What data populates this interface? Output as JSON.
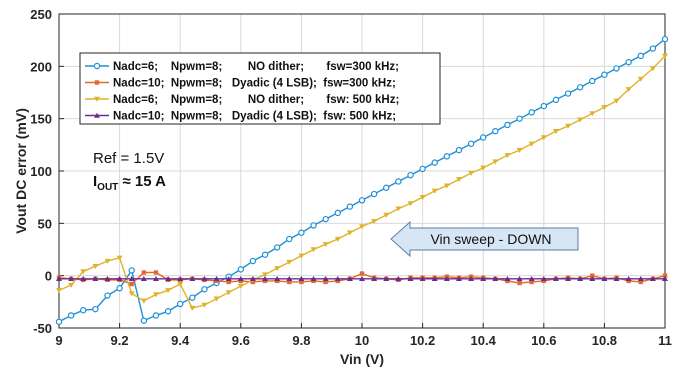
{
  "chart_data": {
    "type": "line",
    "title": "",
    "xlabel": "Vin (V)",
    "ylabel": "Vout DC error (mV)",
    "xlim": [
      9,
      11
    ],
    "ylim": [
      -50,
      250
    ],
    "xticks": [
      "9",
      "9.2",
      "9.4",
      "9.6",
      "9.8",
      "10",
      "10.2",
      "10.4",
      "10.6",
      "10.8",
      "11"
    ],
    "yticks": [
      "-50",
      "0",
      "50",
      "100",
      "150",
      "200",
      "250"
    ],
    "grid": true,
    "legend_position": "top-left",
    "series": [
      {
        "name": "Nadc=6;    Npwm=8;        NO dither;       fsw=300 kHz;",
        "color": "#1f8fd6",
        "marker": "circle",
        "points": [
          [
            9.0,
            -44
          ],
          [
            9.04,
            -38
          ],
          [
            9.08,
            -33
          ],
          [
            9.12,
            -32
          ],
          [
            9.16,
            -19
          ],
          [
            9.2,
            -12
          ],
          [
            9.24,
            5
          ],
          [
            9.28,
            -43
          ],
          [
            9.32,
            -38
          ],
          [
            9.36,
            -34
          ],
          [
            9.4,
            -27
          ],
          [
            9.44,
            -21
          ],
          [
            9.48,
            -13
          ],
          [
            9.52,
            -7
          ],
          [
            9.56,
            -1
          ],
          [
            9.6,
            6
          ],
          [
            9.64,
            14
          ],
          [
            9.68,
            20
          ],
          [
            9.72,
            27
          ],
          [
            9.76,
            35
          ],
          [
            9.8,
            41
          ],
          [
            9.84,
            48
          ],
          [
            9.88,
            54
          ],
          [
            9.92,
            60
          ],
          [
            9.96,
            66
          ],
          [
            10.0,
            72
          ],
          [
            10.04,
            78
          ],
          [
            10.08,
            84
          ],
          [
            10.12,
            90
          ],
          [
            10.16,
            96
          ],
          [
            10.2,
            102
          ],
          [
            10.24,
            108
          ],
          [
            10.28,
            114
          ],
          [
            10.32,
            120
          ],
          [
            10.36,
            126
          ],
          [
            10.4,
            132
          ],
          [
            10.44,
            138
          ],
          [
            10.48,
            144
          ],
          [
            10.52,
            150
          ],
          [
            10.56,
            156
          ],
          [
            10.6,
            162
          ],
          [
            10.64,
            168
          ],
          [
            10.68,
            174
          ],
          [
            10.72,
            180
          ],
          [
            10.76,
            186
          ],
          [
            10.8,
            192
          ],
          [
            10.84,
            198
          ],
          [
            10.88,
            204
          ],
          [
            10.92,
            210
          ],
          [
            10.96,
            217
          ],
          [
            11.0,
            226
          ]
        ]
      },
      {
        "name": "Nadc=10;  Npwm=8;   Dyadic (4 LSB);  fsw=300 kHz;",
        "color": "#e46a2c",
        "marker": "square",
        "points": [
          [
            9.0,
            -2
          ],
          [
            9.04,
            -3
          ],
          [
            9.08,
            -4
          ],
          [
            9.12,
            -3
          ],
          [
            9.16,
            -4
          ],
          [
            9.2,
            -4
          ],
          [
            9.24,
            -8
          ],
          [
            9.28,
            3
          ],
          [
            9.32,
            3
          ],
          [
            9.36,
            -4
          ],
          [
            9.4,
            -4
          ],
          [
            9.44,
            -3
          ],
          [
            9.48,
            -4
          ],
          [
            9.52,
            -5
          ],
          [
            9.56,
            -6
          ],
          [
            9.6,
            -5
          ],
          [
            9.64,
            -6
          ],
          [
            9.68,
            -5
          ],
          [
            9.72,
            -5
          ],
          [
            9.76,
            -6
          ],
          [
            9.8,
            -6
          ],
          [
            9.84,
            -5
          ],
          [
            9.88,
            -6
          ],
          [
            9.92,
            -5
          ],
          [
            9.96,
            -3
          ],
          [
            10.0,
            2
          ],
          [
            10.04,
            -2
          ],
          [
            10.08,
            -3
          ],
          [
            10.12,
            -4
          ],
          [
            10.16,
            -2
          ],
          [
            10.2,
            -2
          ],
          [
            10.24,
            -2
          ],
          [
            10.28,
            -1
          ],
          [
            10.32,
            -2
          ],
          [
            10.36,
            -1
          ],
          [
            10.4,
            -2
          ],
          [
            10.44,
            -3
          ],
          [
            10.48,
            -5
          ],
          [
            10.52,
            -7
          ],
          [
            10.56,
            -6
          ],
          [
            10.6,
            -5
          ],
          [
            10.64,
            -3
          ],
          [
            10.68,
            -2
          ],
          [
            10.72,
            -3
          ],
          [
            10.76,
            0
          ],
          [
            10.8,
            -3
          ],
          [
            10.84,
            -2
          ],
          [
            10.88,
            -5
          ],
          [
            10.92,
            -6
          ],
          [
            10.96,
            -3
          ],
          [
            11.0,
            0
          ]
        ]
      },
      {
        "name": "Nadc=6;    Npwm=8;        NO dither;       fsw: 500 kHz;",
        "color": "#e0b22a",
        "marker": "triangle-down",
        "points": [
          [
            9.0,
            -14
          ],
          [
            9.04,
            -9
          ],
          [
            9.08,
            4
          ],
          [
            9.12,
            9
          ],
          [
            9.16,
            14
          ],
          [
            9.2,
            17
          ],
          [
            9.24,
            -17
          ],
          [
            9.28,
            -24
          ],
          [
            9.32,
            -18
          ],
          [
            9.36,
            -14
          ],
          [
            9.4,
            -8
          ],
          [
            9.44,
            -31
          ],
          [
            9.48,
            -28
          ],
          [
            9.52,
            -22
          ],
          [
            9.56,
            -16
          ],
          [
            9.6,
            -10
          ],
          [
            9.64,
            -4
          ],
          [
            9.68,
            1
          ],
          [
            9.72,
            7
          ],
          [
            9.76,
            13
          ],
          [
            9.8,
            19
          ],
          [
            9.84,
            25
          ],
          [
            9.88,
            30
          ],
          [
            9.92,
            35
          ],
          [
            9.96,
            41
          ],
          [
            10.0,
            47
          ],
          [
            10.04,
            52
          ],
          [
            10.08,
            58
          ],
          [
            10.12,
            64
          ],
          [
            10.16,
            69
          ],
          [
            10.2,
            75
          ],
          [
            10.24,
            81
          ],
          [
            10.28,
            86
          ],
          [
            10.32,
            92
          ],
          [
            10.36,
            98
          ],
          [
            10.4,
            103
          ],
          [
            10.44,
            109
          ],
          [
            10.48,
            115
          ],
          [
            10.52,
            120
          ],
          [
            10.56,
            126
          ],
          [
            10.6,
            132
          ],
          [
            10.64,
            138
          ],
          [
            10.68,
            143
          ],
          [
            10.72,
            149
          ],
          [
            10.76,
            155
          ],
          [
            10.8,
            161
          ],
          [
            10.84,
            167
          ],
          [
            10.88,
            178
          ],
          [
            10.92,
            188
          ],
          [
            10.96,
            198
          ],
          [
            11.0,
            210
          ]
        ]
      },
      {
        "name": "Nadc=10;  Npwm=8;   Dyadic (4 LSB);  fsw: 500 kHz;",
        "color": "#6b2c8f",
        "marker": "triangle-up",
        "points": [
          [
            9.0,
            -3
          ],
          [
            9.04,
            -3
          ],
          [
            9.08,
            -3
          ],
          [
            9.12,
            -3
          ],
          [
            9.16,
            -3
          ],
          [
            9.2,
            -3
          ],
          [
            9.24,
            -3
          ],
          [
            9.28,
            -3
          ],
          [
            9.32,
            -3
          ],
          [
            9.36,
            -3
          ],
          [
            9.4,
            -3
          ],
          [
            9.44,
            -3
          ],
          [
            9.48,
            -3
          ],
          [
            9.52,
            -3
          ],
          [
            9.56,
            -3
          ],
          [
            9.6,
            -3
          ],
          [
            9.64,
            -3
          ],
          [
            9.68,
            -3
          ],
          [
            9.72,
            -3
          ],
          [
            9.76,
            -3
          ],
          [
            9.8,
            -3
          ],
          [
            9.84,
            -3
          ],
          [
            9.88,
            -3
          ],
          [
            9.92,
            -3
          ],
          [
            9.96,
            -3
          ],
          [
            10.0,
            -3
          ],
          [
            10.04,
            -3
          ],
          [
            10.08,
            -3
          ],
          [
            10.12,
            -3
          ],
          [
            10.16,
            -3
          ],
          [
            10.2,
            -3
          ],
          [
            10.24,
            -3
          ],
          [
            10.28,
            -3
          ],
          [
            10.32,
            -3
          ],
          [
            10.36,
            -3
          ],
          [
            10.4,
            -3
          ],
          [
            10.44,
            -3
          ],
          [
            10.48,
            -3
          ],
          [
            10.52,
            -3
          ],
          [
            10.56,
            -3
          ],
          [
            10.6,
            -3
          ],
          [
            10.64,
            -3
          ],
          [
            10.68,
            -3
          ],
          [
            10.72,
            -3
          ],
          [
            10.76,
            -3
          ],
          [
            10.8,
            -3
          ],
          [
            10.84,
            -3
          ],
          [
            10.88,
            -3
          ],
          [
            10.92,
            -3
          ],
          [
            10.96,
            -3
          ],
          [
            11.0,
            -3
          ]
        ]
      }
    ],
    "annotations": {
      "ref_text": "Ref = 1.5V",
      "iout_main": "I",
      "iout_sub": "OUT",
      "iout_rest": " ≈ 15 A",
      "arrow_label": "Vin sweep - DOWN"
    }
  }
}
